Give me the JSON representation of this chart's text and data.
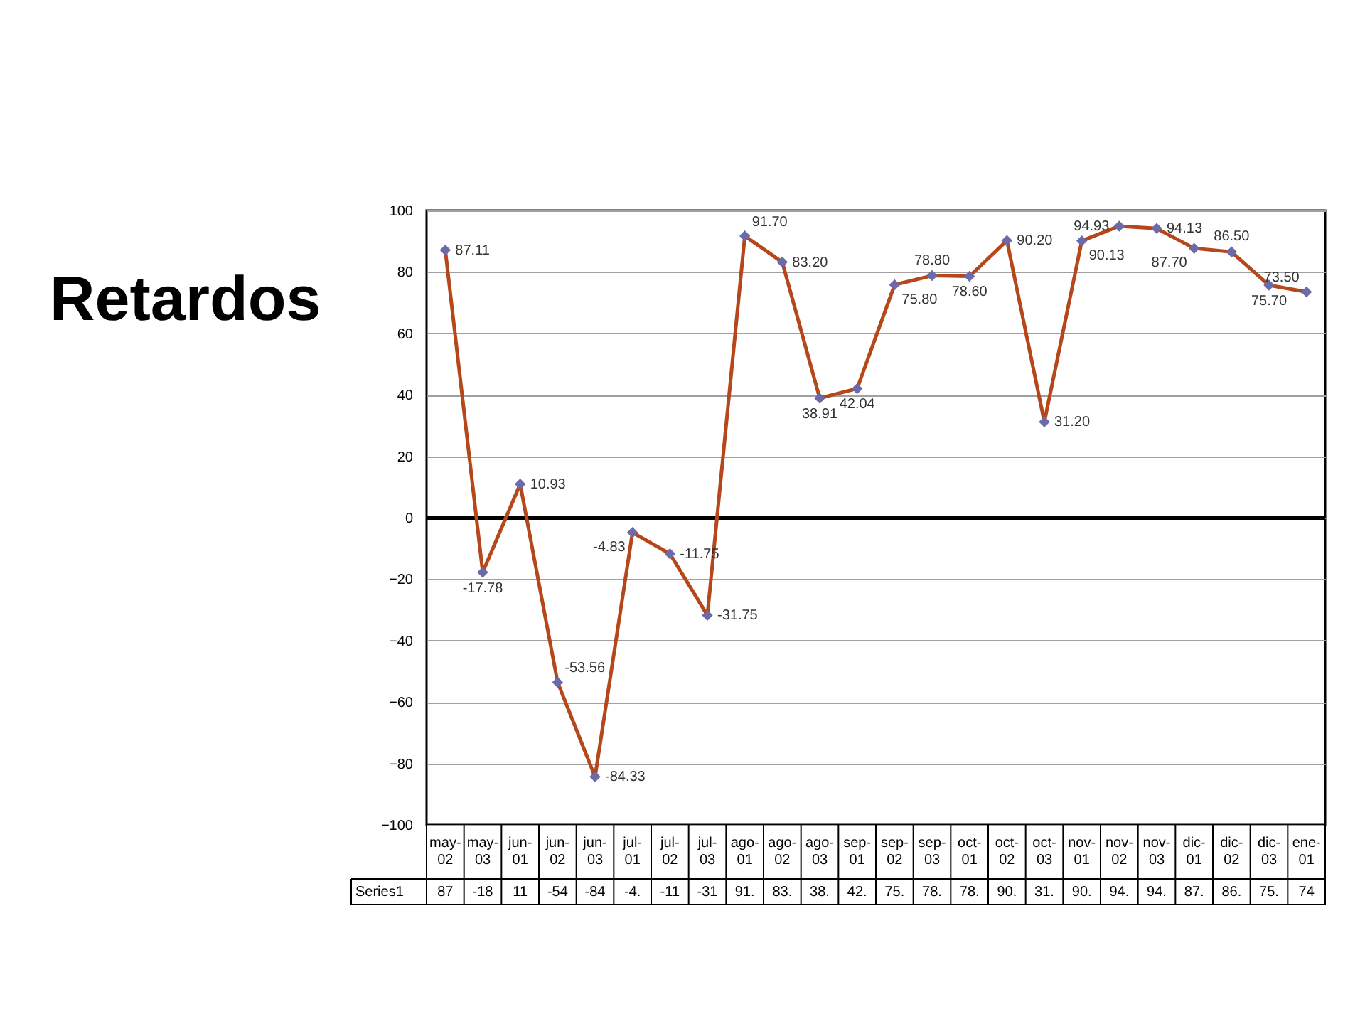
{
  "chart_data": {
    "type": "line",
    "title": "Retardos",
    "categories": [
      "may-02",
      "may-03",
      "jun-01",
      "jun-02",
      "jun-03",
      "jul-01",
      "jul-02",
      "jul-03",
      "ago-01",
      "ago-02",
      "ago-03",
      "sep-01",
      "sep-02",
      "sep-03",
      "oct-01",
      "oct-02",
      "oct-03",
      "nov-01",
      "nov-02",
      "nov-03",
      "dic-01",
      "dic-02",
      "dic-03",
      "ene-01"
    ],
    "series": [
      {
        "name": "Series1",
        "color": "#b5471b",
        "colors": [
          "#6b6ba8",
          "#6b6ba8",
          "#6b6ba8",
          "#6b6ba8",
          "#6b6ba8",
          "#6b6ba8",
          "#6b6ba8",
          "#6b6ba8",
          "#6b6ba8",
          "#6b6ba8",
          "#6b6ba8",
          "#6b6ba8",
          "#6b6ba8",
          "#6b6ba8",
          "#6b6ba8",
          "#6b6ba8",
          "#6b6ba8",
          "#6b6ba8",
          "#6b6ba8",
          "#6b6ba8",
          "#6b6ba8",
          "#6b6ba8",
          "#6b6ba8",
          "#6b6ba8"
        ],
        "values": [
          87.11,
          -17.78,
          10.93,
          -53.56,
          -84.33,
          -4.83,
          -11.75,
          -31.75,
          91.7,
          83.2,
          38.91,
          42.04,
          75.8,
          78.8,
          78.6,
          90.2,
          31.2,
          90.13,
          94.93,
          94.13,
          87.7,
          86.5,
          75.7,
          73.5
        ],
        "value_labels": [
          "87.11",
          "-17.78",
          "10.93",
          "-53.56",
          "-84.33",
          "-4.83",
          "-11.75",
          "-31.75",
          "91.70",
          "83.20",
          "38.91",
          "42.04",
          "75.80",
          "78.80",
          "78.60",
          "90.20",
          "31.20",
          "90.13",
          "94.93",
          "94.13",
          "87.70",
          "86.50",
          "75.70",
          "73.50"
        ]
      }
    ],
    "ylim": [
      -100,
      100
    ],
    "yticks": [
      -100,
      -80,
      -60,
      -40,
      -20,
      0,
      20,
      40,
      60,
      80,
      100
    ],
    "grid": "y",
    "marker": "diamond",
    "line_style": "solid",
    "ref_lines": [
      {
        "axis": "y",
        "value": 0,
        "color": "#000000"
      }
    ],
    "annotations": [
      "87",
      "-18",
      "11",
      "-54",
      "-84",
      "-4.",
      "-11",
      "-31",
      "91.",
      "83.",
      "38.",
      "42.",
      "75.",
      "78.",
      "78.",
      "90.",
      "31.",
      "90.",
      "94.",
      "94.",
      "87.",
      "86.",
      "75.",
      "74"
    ]
  }
}
